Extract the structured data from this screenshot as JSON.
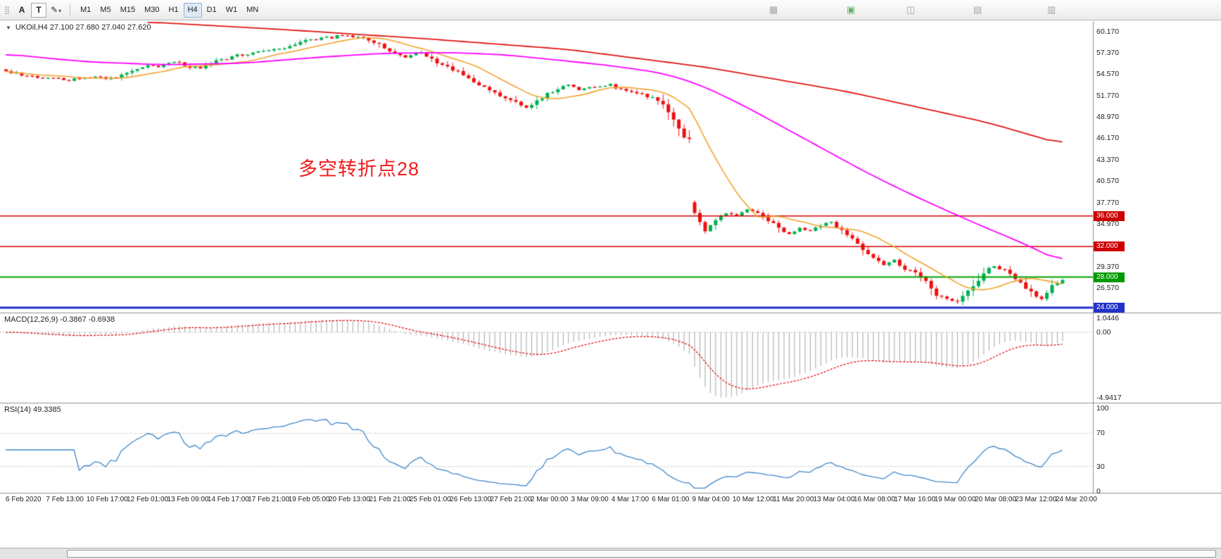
{
  "toolbar": {
    "timeframes": [
      "M1",
      "M5",
      "M15",
      "M30",
      "H1",
      "H4",
      "D1",
      "W1",
      "MN"
    ],
    "active_timeframe": "H4",
    "cursor_button_label": "A",
    "text_button_label": "T",
    "icons": {
      "drag_handle": "⣿",
      "draw_tool": "✎",
      "dropdown_arrow": "▾",
      "collapse_arrow": "▼",
      "extra": [
        "▦",
        "▣",
        "◫",
        "▤",
        "▥"
      ]
    }
  },
  "chart": {
    "symbol_info": "UKOil,H4 27.100 27.680 27.040 27.620",
    "collapse_arrow": "▼",
    "annotation": "多空转折点28"
  },
  "chart_data": {
    "type": "candlestick",
    "symbol": "UKOil",
    "timeframe": "H4",
    "ohlc_current": {
      "open": 27.1,
      "high": 27.68,
      "low": 27.04,
      "close": 27.62
    },
    "price_axis_ticks": [
      {
        "label": "60.170",
        "price": 60.17
      },
      {
        "label": "57.370",
        "price": 57.37
      },
      {
        "label": "54.570",
        "price": 54.57
      },
      {
        "label": "51.770",
        "price": 51.77
      },
      {
        "label": "48.970",
        "price": 48.97
      },
      {
        "label": "46.170",
        "price": 46.17
      },
      {
        "label": "43.370",
        "price": 43.37
      },
      {
        "label": "40.570",
        "price": 40.57
      },
      {
        "label": "37.770",
        "price": 37.77
      },
      {
        "label": "34.970",
        "price": 34.97
      },
      {
        "label": "29.370",
        "price": 29.37
      },
      {
        "label": "26.570",
        "price": 26.57
      }
    ],
    "levels": [
      {
        "label": "36.000",
        "price": 36.0,
        "line_color": "#d40000",
        "badge_color": "#cc0000",
        "line_width": 1.4
      },
      {
        "label": "32.000",
        "price": 32.0,
        "line_color": "#d40000",
        "badge_color": "#cc0000",
        "line_width": 1.4
      },
      {
        "label": "28.000",
        "price": 28.0,
        "line_color": "#00a000",
        "badge_color": "#009900",
        "line_width": 2
      },
      {
        "label": "24.000",
        "price": 24.0,
        "line_color": "#2231c8",
        "badge_color": "#2231c8",
        "line_width": 3
      }
    ],
    "candle_count": 202,
    "candle_close_waypoints": [
      [
        0,
        55.0
      ],
      [
        4,
        54.3
      ],
      [
        8,
        54.0
      ],
      [
        12,
        53.8
      ],
      [
        16,
        54.2
      ],
      [
        20,
        54.0
      ],
      [
        23,
        54.6
      ],
      [
        27,
        55.8
      ],
      [
        29,
        55.5
      ],
      [
        32,
        56.2
      ],
      [
        35,
        55.5
      ],
      [
        37,
        55.3
      ],
      [
        40,
        56.3
      ],
      [
        44,
        57.0
      ],
      [
        47,
        57.3
      ],
      [
        49,
        57.5
      ],
      [
        52,
        58.0
      ],
      [
        55,
        58.3
      ],
      [
        57,
        59.0
      ],
      [
        60,
        59.3
      ],
      [
        63,
        59.5
      ],
      [
        65,
        59.6
      ],
      [
        68,
        59.2
      ],
      [
        71,
        58.5
      ],
      [
        73,
        57.5
      ],
      [
        76,
        56.8
      ],
      [
        79,
        57.3
      ],
      [
        81,
        56.5
      ],
      [
        84,
        55.5
      ],
      [
        87,
        54.5
      ],
      [
        89,
        53.5
      ],
      [
        92,
        52.5
      ],
      [
        95,
        51.5
      ],
      [
        97,
        51.0
      ],
      [
        99,
        50.0
      ],
      [
        101,
        51.0
      ],
      [
        103,
        52.0
      ],
      [
        105,
        52.5
      ],
      [
        107,
        53.2
      ],
      [
        109,
        52.6
      ],
      [
        112,
        52.9
      ],
      [
        115,
        53.1
      ],
      [
        117,
        52.5
      ],
      [
        120,
        52.0
      ],
      [
        123,
        51.5
      ],
      [
        125,
        50.5
      ],
      [
        127,
        48.5
      ],
      [
        129,
        46.3
      ],
      [
        130,
        46.1
      ],
      [
        131,
        36.3
      ],
      [
        133,
        34.1
      ],
      [
        135,
        35.5
      ],
      [
        137,
        36.5
      ],
      [
        139,
        36.0
      ],
      [
        141,
        37.0
      ],
      [
        143,
        36.4
      ],
      [
        145,
        35.5
      ],
      [
        147,
        34.5
      ],
      [
        149,
        33.6
      ],
      [
        151,
        34.5
      ],
      [
        153,
        33.9
      ],
      [
        155,
        34.8
      ],
      [
        157,
        35.2
      ],
      [
        159,
        34.0
      ],
      [
        161,
        33.0
      ],
      [
        163,
        31.6
      ],
      [
        165,
        30.5
      ],
      [
        167,
        29.6
      ],
      [
        169,
        30.1
      ],
      [
        171,
        29.1
      ],
      [
        173,
        28.5
      ],
      [
        175,
        27.4
      ],
      [
        177,
        25.6
      ],
      [
        179,
        25.1
      ],
      [
        181,
        24.9
      ],
      [
        183,
        26.1
      ],
      [
        185,
        27.6
      ],
      [
        187,
        29.1
      ],
      [
        188,
        29.5
      ],
      [
        189,
        29.2
      ],
      [
        191,
        28.4
      ],
      [
        193,
        27.4
      ],
      [
        194,
        26.6
      ],
      [
        196,
        25.6
      ],
      [
        197,
        25.3
      ],
      [
        198,
        26.1
      ],
      [
        199,
        26.9
      ],
      [
        200,
        27.3
      ],
      [
        201,
        27.62
      ]
    ],
    "ma_fast": {
      "period": 13
    },
    "ma_mid_waypoints": [
      [
        0,
        57.2
      ],
      [
        15,
        56.2
      ],
      [
        30,
        55.8
      ],
      [
        45,
        56.0
      ],
      [
        60,
        56.8
      ],
      [
        72,
        57.3
      ],
      [
        85,
        57.4
      ],
      [
        95,
        57.1
      ],
      [
        105,
        56.4
      ],
      [
        115,
        55.7
      ],
      [
        125,
        54.7
      ],
      [
        132,
        53.2
      ],
      [
        140,
        50.6
      ],
      [
        148,
        47.6
      ],
      [
        156,
        44.6
      ],
      [
        164,
        41.6
      ],
      [
        172,
        38.9
      ],
      [
        180,
        36.4
      ],
      [
        187,
        34.3
      ],
      [
        193,
        32.6
      ],
      [
        197,
        31.3
      ],
      [
        201,
        29.9
      ]
    ],
    "ma_slow_waypoints": [
      [
        27,
        61.4
      ],
      [
        53,
        60.4
      ],
      [
        80,
        59.2
      ],
      [
        107,
        57.8
      ],
      [
        133,
        55.5
      ],
      [
        160,
        52.3
      ],
      [
        187,
        48.2
      ],
      [
        201,
        45.4
      ]
    ],
    "macd": {
      "label": "MACD(12,26,9) -0.3867 -0.6938",
      "fast": 12,
      "slow": 26,
      "signal": 9,
      "current_macd": -0.3867,
      "current_signal": -0.6938,
      "axis_ticks": [
        {
          "label": "1.0446",
          "value": 1.0446
        },
        {
          "label": "0.00",
          "value": 0
        },
        {
          "label": "-4.9417",
          "value": -4.9417
        }
      ]
    },
    "rsi": {
      "label": "RSI(14) 49.3385",
      "period": 14,
      "current": 49.3385,
      "axis_ticks": [
        {
          "label": "100",
          "value": 100
        },
        {
          "label": "70",
          "value": 70
        },
        {
          "label": "30",
          "value": 30
        },
        {
          "label": "0",
          "value": 0
        }
      ],
      "level_lines": [
        70,
        30
      ]
    },
    "time_axis_labels": [
      "6 Feb 2020",
      "7 Feb 13:00",
      "10 Feb 17:00",
      "12 Feb 01:00",
      "13 Feb 09:00",
      "14 Feb 17:00",
      "17 Feb 21:00",
      "19 Feb 05:00",
      "20 Feb 13:00",
      "21 Feb 21:00",
      "25 Feb 01:00",
      "26 Feb 13:00",
      "27 Feb 21:00",
      "2 Mar 00:00",
      "3 Mar 09:00",
      "4 Mar 17:00",
      "6 Mar 01:00",
      "9 Mar 04:00",
      "10 Mar 12:00",
      "11 Mar 20:00",
      "13 Mar 04:00",
      "16 Mar 08:00",
      "17 Mar 16:00",
      "19 Mar 00:00",
      "20 Mar 08:00",
      "23 Mar 12:00",
      "24 Mar 20:00"
    ],
    "colors": {
      "up": "#00b050",
      "down": "#ef1010",
      "ma_fast": "#f2a32e",
      "ma_mid": "#ff00ff",
      "ma_slow": "#e01616",
      "macd_hist": "#a6a6a6",
      "macd_signal": "#e00000",
      "rsi_line": "#3f87c9",
      "annotation": "#f21b1b"
    }
  }
}
